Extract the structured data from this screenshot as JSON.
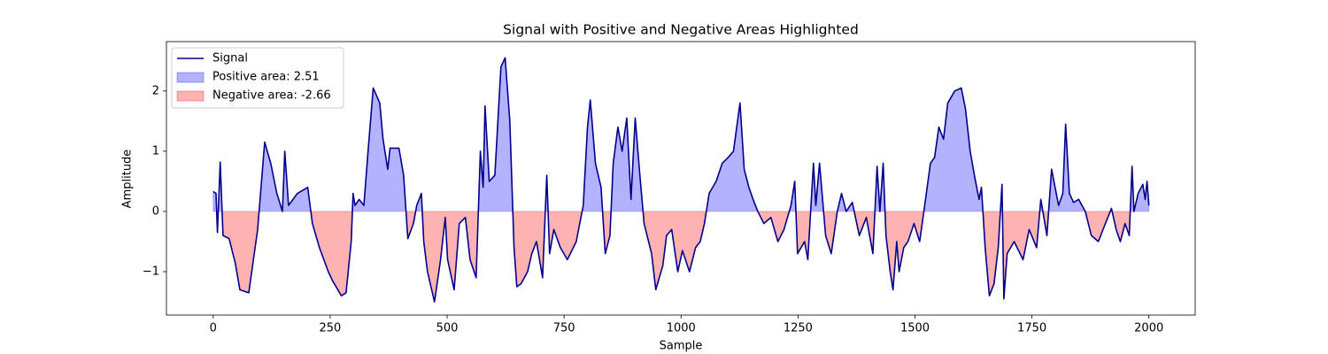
{
  "chart_data": {
    "type": "line",
    "title": "Signal with Positive and Negative Areas Highlighted",
    "x_label": "Sample",
    "y_label": "Amplitude",
    "x": [
      0,
      6,
      9,
      15,
      21,
      34,
      42,
      47,
      57,
      76,
      95,
      110,
      123,
      136,
      148,
      153,
      161,
      180,
      202,
      212,
      227,
      246,
      255,
      274,
      284,
      295,
      299,
      303,
      312,
      322,
      331,
      342,
      356,
      363,
      373,
      378,
      397,
      407,
      416,
      428,
      435,
      445,
      450,
      458,
      473,
      486,
      496,
      501,
      515,
      526,
      539,
      549,
      562,
      571,
      577,
      581,
      590,
      602,
      615,
      624,
      634,
      643,
      649,
      658,
      672,
      681,
      691,
      704,
      713,
      719,
      728,
      742,
      757,
      776,
      791,
      800,
      806,
      817,
      829,
      838,
      848,
      855,
      865,
      874,
      884,
      893,
      902,
      912,
      921,
      937,
      946,
      961,
      969,
      980,
      993,
      1003,
      1018,
      1031,
      1041,
      1050,
      1060,
      1075,
      1088,
      1101,
      1112,
      1126,
      1135,
      1145,
      1154,
      1164,
      1177,
      1192,
      1207,
      1220,
      1235,
      1243,
      1249,
      1264,
      1271,
      1283,
      1288,
      1296,
      1309,
      1321,
      1334,
      1343,
      1353,
      1366,
      1381,
      1396,
      1410,
      1419,
      1425,
      1432,
      1438,
      1447,
      1453,
      1461,
      1466,
      1476,
      1485,
      1498,
      1510,
      1519,
      1533,
      1542,
      1551,
      1561,
      1570,
      1585,
      1599,
      1608,
      1618,
      1627,
      1637,
      1642,
      1650,
      1659,
      1669,
      1678,
      1686,
      1690,
      1697,
      1712,
      1731,
      1744,
      1760,
      1769,
      1782,
      1792,
      1807,
      1816,
      1822,
      1830,
      1839,
      1850,
      1864,
      1877,
      1892,
      1907,
      1920,
      1930,
      1939,
      1949,
      1958,
      1964,
      1968,
      1977,
      1987,
      1992,
      1996,
      2000
    ],
    "series": [
      {
        "name": "Signal",
        "color": "#00008b",
        "values": [
          0.33,
          0.3,
          -0.35,
          0.82,
          -0.4,
          -0.45,
          -0.7,
          -0.85,
          -1.3,
          -1.35,
          -0.3,
          1.15,
          0.8,
          0.3,
          0.0,
          1.0,
          0.1,
          0.3,
          0.4,
          -0.2,
          -0.6,
          -1.0,
          -1.15,
          -1.4,
          -1.35,
          -0.5,
          0.3,
          0.1,
          0.2,
          0.1,
          1.0,
          2.05,
          1.8,
          1.2,
          0.7,
          1.05,
          1.05,
          0.6,
          -0.45,
          -0.2,
          0.1,
          0.3,
          -0.5,
          -1.0,
          -1.5,
          -0.8,
          -0.1,
          -0.8,
          -1.3,
          -0.2,
          -0.1,
          -0.8,
          -1.1,
          1.0,
          0.4,
          1.75,
          0.5,
          0.6,
          2.4,
          2.55,
          1.5,
          -0.6,
          -1.25,
          -1.2,
          -1.0,
          -0.7,
          -0.5,
          -1.1,
          0.6,
          -0.7,
          -0.3,
          -0.6,
          -0.8,
          -0.5,
          0.1,
          1.4,
          1.85,
          0.8,
          0.4,
          -0.7,
          -0.4,
          0.8,
          1.4,
          1.0,
          1.55,
          0.2,
          1.55,
          0.6,
          -0.2,
          -0.7,
          -1.3,
          -0.9,
          -0.4,
          -0.3,
          -1.0,
          -0.65,
          -1.0,
          -0.6,
          -0.5,
          -0.2,
          0.3,
          0.5,
          0.8,
          0.9,
          1.0,
          1.8,
          0.7,
          0.4,
          0.2,
          0.0,
          -0.2,
          -0.1,
          -0.5,
          -0.3,
          0.1,
          0.5,
          -0.7,
          -0.5,
          -0.8,
          0.8,
          0.1,
          0.8,
          -0.4,
          -0.7,
          0.0,
          0.3,
          0.0,
          0.15,
          -0.4,
          -0.1,
          -0.7,
          0.75,
          0.0,
          0.8,
          -0.4,
          -1.0,
          -1.3,
          -0.5,
          -1.0,
          -0.6,
          -0.5,
          -0.2,
          -0.5,
          0.0,
          0.8,
          0.9,
          1.4,
          1.2,
          1.8,
          2.0,
          2.05,
          1.7,
          1.0,
          0.6,
          0.2,
          0.4,
          -0.6,
          -1.4,
          -1.2,
          -0.6,
          0.45,
          -1.45,
          -0.7,
          -0.5,
          -0.8,
          -0.3,
          -0.6,
          0.2,
          -0.4,
          0.7,
          0.1,
          0.3,
          1.45,
          0.3,
          0.15,
          0.2,
          0.0,
          -0.4,
          -0.5,
          -0.2,
          0.05,
          -0.3,
          -0.5,
          -0.2,
          -0.4,
          0.75,
          0.0,
          0.3,
          0.45,
          0.2,
          0.5,
          0.1
        ]
      }
    ],
    "fills": [
      {
        "name": "Positive area: 2.51",
        "color": "#0000ff",
        "alpha": 0.3
      },
      {
        "name": "Negative area: -2.66",
        "color": "#ff0000",
        "alpha": 0.3
      }
    ],
    "xlim": [
      -99.95,
      2098.95
    ],
    "ylim": [
      -1.72,
      2.82
    ],
    "xticks": [
      0,
      250,
      500,
      750,
      1000,
      1250,
      1500,
      1750,
      2000
    ],
    "yticks": [
      {
        "value": -1,
        "label": "−1"
      },
      0,
      1,
      2
    ],
    "legend": "upper left"
  }
}
